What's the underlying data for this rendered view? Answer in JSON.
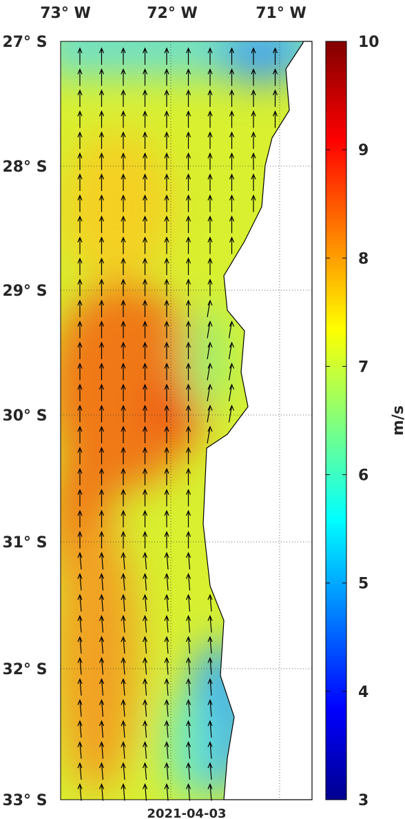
{
  "map": {
    "lon_labels": [
      "73° W",
      "72° W",
      "71° W"
    ],
    "lat_labels": [
      "27° S",
      "28° S",
      "29° S",
      "30° S",
      "31° S",
      "32° S",
      "33° S"
    ],
    "date": "2021-04-03"
  },
  "colorbar": {
    "label": "m/s",
    "range": [
      3,
      10
    ],
    "ticks": [
      3,
      4,
      5,
      6,
      7,
      8,
      9,
      10
    ]
  }
}
